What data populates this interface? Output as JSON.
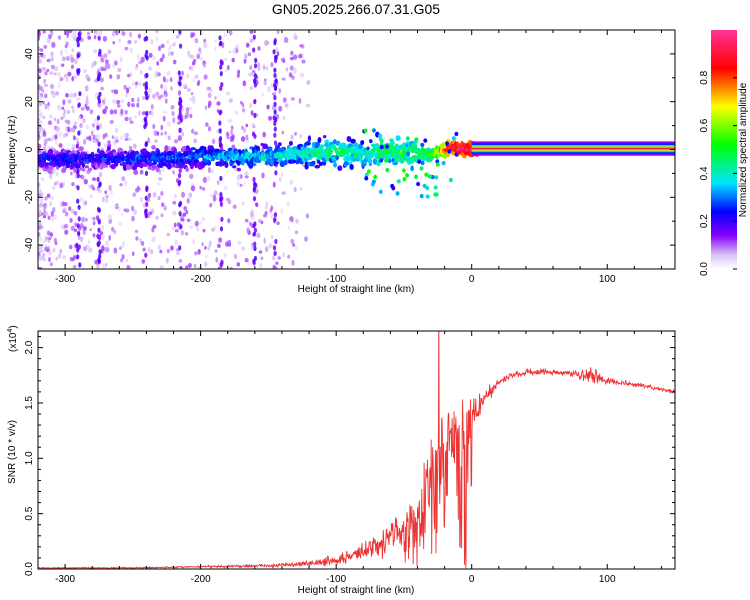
{
  "title": "GN05.2025.266.07.31.G05",
  "colors": {
    "snr_line": "#ee3333",
    "axis": "#000000"
  },
  "chart_data": [
    {
      "type": "heatmap",
      "xlabel": "Height of straight line (km)",
      "ylabel": "Frequency (Hz)",
      "xlim": [
        -320,
        150
      ],
      "ylim": [
        -50,
        50
      ],
      "x_ticks": [
        -300,
        -200,
        -100,
        0,
        100
      ],
      "x_tick_labels": [
        "-300",
        "-200",
        "-100",
        "0",
        "100"
      ],
      "y_ticks": [
        -40,
        -20,
        0,
        20,
        40
      ],
      "y_tick_labels": [
        "-40",
        "-20",
        "0",
        "20",
        "40"
      ],
      "colorbar": {
        "label": "Normalized spectral amplitude",
        "range": [
          0,
          1
        ],
        "ticks": [
          0,
          0.2,
          0.4,
          0.6,
          0.8
        ],
        "tick_labels": [
          "0.0",
          "0.2",
          "0.4",
          "0.6",
          "0.8"
        ]
      },
      "ridge": {
        "x": [
          -320,
          -280,
          -240,
          -200,
          -160,
          -130,
          -100,
          -80,
          -60,
          -45,
          -30,
          -15,
          0,
          20,
          150
        ],
        "freq": [
          -4,
          -4,
          -4,
          -3,
          -3,
          -2,
          -1,
          -2,
          0,
          -2,
          -2,
          1,
          0,
          0,
          0
        ],
        "amplitude": [
          0.25,
          0.25,
          0.28,
          0.32,
          0.38,
          0.4,
          0.45,
          0.42,
          0.5,
          0.5,
          0.55,
          0.9,
          0.95,
          1.0,
          1.0
        ]
      }
    },
    {
      "type": "line",
      "xlabel": "Height of straight line (km)",
      "ylabel": "SNR (10 * v/v)",
      "y_scale_label": "(x10",
      "y_scale_exponent": "4",
      "xlim": [
        -320,
        150
      ],
      "ylim": [
        0,
        2.15
      ],
      "x_ticks": [
        -300,
        -200,
        -100,
        0,
        100
      ],
      "x_tick_labels": [
        "-300",
        "-200",
        "-100",
        "0",
        "100"
      ],
      "y_ticks": [
        0,
        0.5,
        1.0,
        1.5,
        2.0
      ],
      "y_tick_labels": [
        "0.0",
        "0.5",
        "1.0",
        "1.5",
        "2.0"
      ],
      "series": [
        {
          "name": "SNR",
          "x": [
            -320,
            -250,
            -200,
            -150,
            -120,
            -100,
            -80,
            -60,
            -50,
            -40,
            -30,
            -25,
            -20,
            -10,
            0,
            10,
            20,
            30,
            40,
            60,
            80,
            90,
            100,
            120,
            150
          ],
          "values": [
            0.01,
            0.01,
            0.02,
            0.03,
            0.05,
            0.08,
            0.15,
            0.3,
            0.35,
            0.5,
            0.8,
            1.0,
            1.1,
            1.2,
            1.35,
            1.55,
            1.68,
            1.75,
            1.78,
            1.78,
            1.76,
            1.74,
            1.7,
            1.67,
            1.6
          ],
          "noise_amplitude": [
            0.005,
            0.005,
            0.01,
            0.015,
            0.03,
            0.05,
            0.08,
            0.15,
            0.2,
            0.3,
            0.5,
            0.6,
            0.5,
            0.4,
            0.2,
            0.08,
            0.05,
            0.03,
            0.03,
            0.03,
            0.04,
            0.1,
            0.03,
            0.02,
            0.02
          ]
        }
      ]
    }
  ]
}
